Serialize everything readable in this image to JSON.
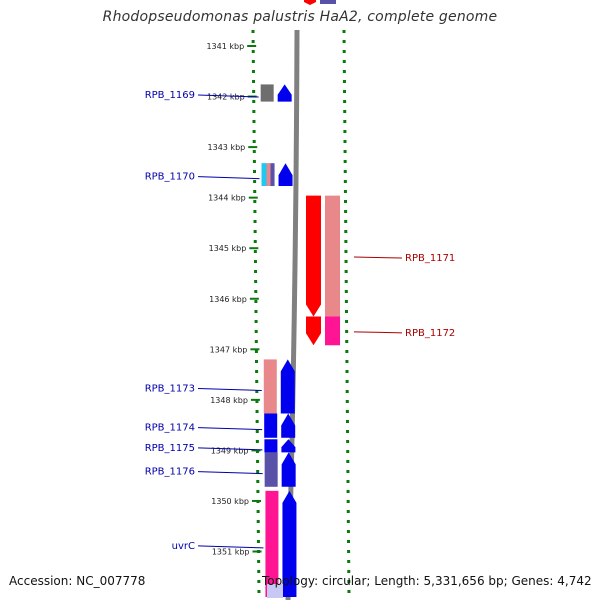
{
  "title": "Rhodopseudomonas palustris HaA2, complete genome",
  "accession": "Accession: NC_007778",
  "topology": "Topology: circular; Length: 5,331,656 bp; Genes: 4,742",
  "colors": {
    "forward_label": "#0000aa",
    "reverse_label": "#aa0000",
    "backbone": "#808080",
    "ruler": "#0a7a0a",
    "blue": "#0000ee",
    "slate": "#5a52a8",
    "red": "#ff0000",
    "salmon": "#e8888a",
    "pink": "#ff1493",
    "gray": "#6e6e6e",
    "cyan": "#1ec8f0"
  },
  "ruler_ticks": [
    {
      "kbp": 1341,
      "label": "1341 kbp"
    },
    {
      "kbp": 1342,
      "label": "1342 kbp"
    },
    {
      "kbp": 1343,
      "label": "1343 kbp"
    },
    {
      "kbp": 1344,
      "label": "1344 kbp"
    },
    {
      "kbp": 1345,
      "label": "1345 kbp"
    },
    {
      "kbp": 1346,
      "label": "1346 kbp"
    },
    {
      "kbp": 1347,
      "label": "1347 kbp"
    },
    {
      "kbp": 1348,
      "label": "1348 kbp"
    },
    {
      "kbp": 1349,
      "label": "1349 kbp"
    },
    {
      "kbp": 1350,
      "label": "1350 kbp"
    },
    {
      "kbp": 1351,
      "label": "1351 kbp"
    }
  ],
  "genes": [
    {
      "name": "RPB_1169",
      "strand": "forward",
      "start_kbp": 1341.76,
      "end_kbp": 1342.1,
      "color": "gray"
    },
    {
      "name": "RPB_1170",
      "strand": "forward",
      "start_kbp": 1343.32,
      "end_kbp": 1343.77,
      "color": "cyan"
    },
    {
      "name": "RPB_1171",
      "strand": "reverse",
      "start_kbp": 1343.96,
      "end_kbp": 1346.35,
      "color": "red"
    },
    {
      "name": "RPB_1172",
      "strand": "reverse",
      "start_kbp": 1346.35,
      "end_kbp": 1346.92,
      "color": "red"
    },
    {
      "name": "RPB_1173",
      "strand": "forward",
      "start_kbp": 1347.2,
      "end_kbp": 1348.27,
      "color": "salmon"
    },
    {
      "name": "RPB_1174",
      "strand": "forward",
      "start_kbp": 1348.27,
      "end_kbp": 1348.75,
      "color": "blue"
    },
    {
      "name": "RPB_1175",
      "strand": "forward",
      "start_kbp": 1348.78,
      "end_kbp": 1349.04,
      "color": "blue"
    },
    {
      "name": "RPB_1176",
      "strand": "forward",
      "start_kbp": 1349.04,
      "end_kbp": 1349.72,
      "color": "slate"
    },
    {
      "name": "uvrC",
      "strand": "forward",
      "start_kbp": 1349.8,
      "end_kbp": 1351.9,
      "color": "pink"
    }
  ]
}
